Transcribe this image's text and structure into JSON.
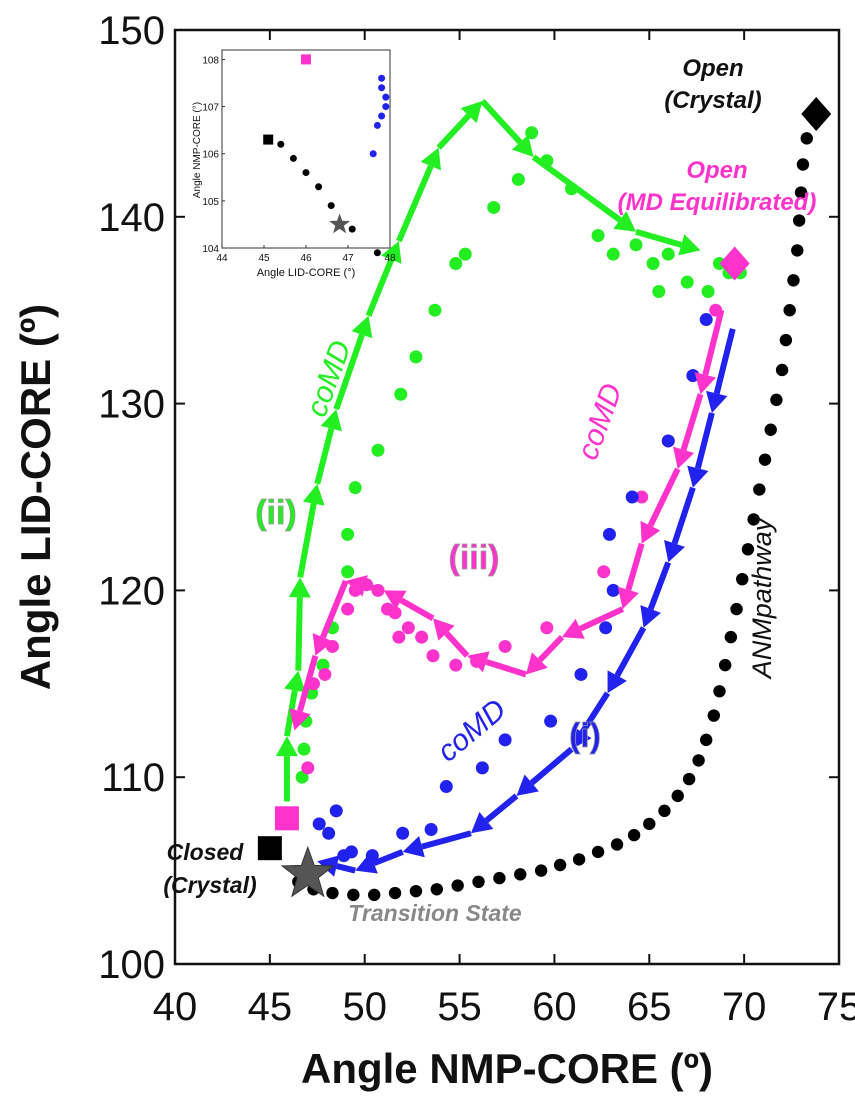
{
  "chart_data": {
    "type": "scatter",
    "xlabel": "Angle NMP-CORE (º)",
    "ylabel": "Angle LID-CORE (º)",
    "xlim": [
      40,
      75
    ],
    "ylim": [
      100,
      150
    ],
    "x_ticks": [
      "40",
      "45",
      "50",
      "55",
      "60",
      "65",
      "70",
      "75"
    ],
    "y_ticks": [
      "100",
      "110",
      "120",
      "130",
      "140",
      "150"
    ],
    "grid": false,
    "series": [
      {
        "name": "ANMpathway",
        "color": "#000000",
        "points": [
          [
            46.5,
            104.4
          ],
          [
            47.3,
            104.0
          ],
          [
            48.3,
            103.8
          ],
          [
            49.4,
            103.7
          ],
          [
            50.5,
            103.7
          ],
          [
            51.6,
            103.8
          ],
          [
            52.7,
            103.9
          ],
          [
            53.8,
            104.0
          ],
          [
            54.9,
            104.2
          ],
          [
            56.0,
            104.4
          ],
          [
            57.1,
            104.6
          ],
          [
            58.2,
            104.8
          ],
          [
            59.3,
            105.0
          ],
          [
            60.3,
            105.3
          ],
          [
            61.3,
            105.6
          ],
          [
            62.3,
            106.0
          ],
          [
            63.3,
            106.4
          ],
          [
            64.2,
            106.9
          ],
          [
            65.0,
            107.5
          ],
          [
            65.8,
            108.2
          ],
          [
            66.5,
            109.0
          ],
          [
            67.1,
            109.9
          ],
          [
            67.6,
            110.9
          ],
          [
            68.0,
            112.0
          ],
          [
            68.4,
            113.3
          ],
          [
            68.7,
            114.6
          ],
          [
            69.0,
            116.0
          ],
          [
            69.3,
            117.5
          ],
          [
            69.6,
            119.0
          ],
          [
            69.9,
            120.6
          ],
          [
            70.2,
            122.2
          ],
          [
            70.5,
            123.8
          ],
          [
            70.8,
            125.4
          ],
          [
            71.1,
            127.0
          ],
          [
            71.4,
            128.6
          ],
          [
            71.7,
            130.2
          ],
          [
            72.0,
            131.8
          ],
          [
            72.2,
            133.4
          ],
          [
            72.4,
            135.0
          ],
          [
            72.6,
            136.6
          ],
          [
            72.8,
            138.2
          ],
          [
            72.9,
            139.8
          ],
          [
            73.0,
            141.3
          ],
          [
            73.1,
            142.8
          ],
          [
            73.3,
            144.2
          ]
        ]
      },
      {
        "name": "",
        "color": "#22ee22",
        "points": [
          [
            46.7,
            110.0
          ],
          [
            46.8,
            111.5
          ],
          [
            46.9,
            113.0
          ],
          [
            47.2,
            114.5
          ],
          [
            47.8,
            116.0
          ],
          [
            48.3,
            118.0
          ],
          [
            49.1,
            121.0
          ],
          [
            49.1,
            123.0
          ],
          [
            49.5,
            125.5
          ],
          [
            50.7,
            127.5
          ],
          [
            51.9,
            130.5
          ],
          [
            52.7,
            132.5
          ],
          [
            53.7,
            135.0
          ],
          [
            54.8,
            137.5
          ],
          [
            55.3,
            138.0
          ],
          [
            56.8,
            140.5
          ],
          [
            58.1,
            142.0
          ],
          [
            58.8,
            144.5
          ],
          [
            59.6,
            143.0
          ],
          [
            60.9,
            141.5
          ],
          [
            62.3,
            139.0
          ],
          [
            63.1,
            138.0
          ],
          [
            64.3,
            138.5
          ],
          [
            65.2,
            137.5
          ],
          [
            65.5,
            136.0
          ],
          [
            66.0,
            138.0
          ],
          [
            67.0,
            136.5
          ],
          [
            68.1,
            136.0
          ],
          [
            68.7,
            137.5
          ],
          [
            69.2,
            137.0
          ],
          [
            69.8,
            137.0
          ]
        ]
      },
      {
        "name": "",
        "color": "#ff33cc",
        "points": [
          [
            47.0,
            110.5
          ],
          [
            47.3,
            115.0
          ],
          [
            47.9,
            115.5
          ],
          [
            48.3,
            117.0
          ],
          [
            49.1,
            119.0
          ],
          [
            49.5,
            120.0
          ],
          [
            50.1,
            120.3
          ],
          [
            50.7,
            120.0
          ],
          [
            51.2,
            119.0
          ],
          [
            51.6,
            118.8
          ],
          [
            51.8,
            117.5
          ],
          [
            52.3,
            118.0
          ],
          [
            53.0,
            117.5
          ],
          [
            53.6,
            116.5
          ],
          [
            54.8,
            116.0
          ],
          [
            55.9,
            116.2
          ],
          [
            57.4,
            117.0
          ],
          [
            59.6,
            118.0
          ],
          [
            62.6,
            121.0
          ],
          [
            64.6,
            125.0
          ],
          [
            66.0,
            128.0
          ],
          [
            67.3,
            131.5
          ],
          [
            68.5,
            135.0
          ]
        ]
      },
      {
        "name": "",
        "color": "#2222ee",
        "points": [
          [
            47.6,
            107.5
          ],
          [
            48.1,
            107.0
          ],
          [
            48.5,
            108.2
          ],
          [
            48.9,
            105.8
          ],
          [
            49.3,
            106.0
          ],
          [
            50.4,
            105.8
          ],
          [
            52.0,
            107.0
          ],
          [
            53.5,
            107.2
          ],
          [
            54.3,
            109.5
          ],
          [
            56.2,
            110.5
          ],
          [
            57.4,
            112.0
          ],
          [
            59.8,
            113.0
          ],
          [
            61.4,
            115.5
          ],
          [
            62.7,
            118.0
          ],
          [
            63.1,
            120.0
          ],
          [
            62.9,
            123.0
          ],
          [
            64.1,
            125.0
          ],
          [
            66.0,
            128.0
          ],
          [
            67.3,
            131.5
          ],
          [
            68.0,
            134.5
          ]
        ]
      }
    ],
    "arrows": [
      {
        "path": "green",
        "color": "#22ee22",
        "points": [
          [
            45.9,
            108.7
          ],
          [
            45.9,
            112.2
          ],
          [
            46.5,
            115.7
          ],
          [
            46.6,
            120.7
          ],
          [
            47.5,
            125.7
          ],
          [
            48.5,
            129.7
          ],
          [
            50.2,
            134.7
          ],
          [
            51.8,
            138.7
          ],
          [
            53.9,
            143.7
          ],
          [
            56.2,
            146.2
          ],
          [
            58.9,
            143.2
          ],
          [
            64.3,
            139.2
          ],
          [
            67.7,
            138.2
          ]
        ]
      },
      {
        "path": "magenta",
        "color": "#ff33cc",
        "points": [
          [
            68.8,
            135.0
          ],
          [
            67.7,
            130.5
          ],
          [
            66.5,
            126.5
          ],
          [
            64.6,
            122.5
          ],
          [
            63.6,
            119.0
          ],
          [
            60.4,
            117.5
          ],
          [
            58.5,
            115.5
          ],
          [
            55.4,
            116.5
          ],
          [
            53.6,
            118.5
          ],
          [
            51.0,
            120.0
          ],
          [
            49.0,
            120.5
          ],
          [
            47.4,
            116.5
          ],
          [
            46.3,
            112.5
          ]
        ]
      },
      {
        "path": "blue",
        "color": "#2222ee",
        "points": [
          [
            69.4,
            134.0
          ],
          [
            68.3,
            129.5
          ],
          [
            67.3,
            125.5
          ],
          [
            66.0,
            121.5
          ],
          [
            64.7,
            118.0
          ],
          [
            62.8,
            114.5
          ],
          [
            60.9,
            111.5
          ],
          [
            58.0,
            109.0
          ],
          [
            55.6,
            107.0
          ],
          [
            52.0,
            106.0
          ],
          [
            49.5,
            105.0
          ],
          [
            47.5,
            105.5
          ]
        ]
      }
    ],
    "markers": [
      {
        "label_key": "closed",
        "shape": "square",
        "color": "#000000",
        "x": 45.0,
        "y": 106.2
      },
      {
        "label_key": "md_square",
        "shape": "square",
        "color": "#ff33cc",
        "x": 45.9,
        "y": 107.8
      },
      {
        "label_key": "transition",
        "shape": "star",
        "color": "#555555",
        "x": 47.0,
        "y": 104.8
      },
      {
        "label_key": "open_crystal",
        "shape": "diamond",
        "color": "#000000",
        "x": 73.8,
        "y": 145.5
      },
      {
        "label_key": "open_md",
        "shape": "diamond",
        "color": "#ff33cc",
        "x": 69.5,
        "y": 137.5
      }
    ],
    "inset": {
      "xlabel": "Angle LID-CORE (°)",
      "ylabel": "Angle NMP-CORE (°)",
      "xlim": [
        44,
        48
      ],
      "ylim": [
        104,
        108.2
      ],
      "x_ticks": [
        "44",
        "45",
        "46",
        "47",
        "48"
      ],
      "y_ticks": [
        "104",
        "105",
        "106",
        "107",
        "108"
      ],
      "black_points": [
        [
          45.4,
          106.2
        ],
        [
          45.7,
          105.9
        ],
        [
          46.0,
          105.6
        ],
        [
          46.3,
          105.3
        ],
        [
          46.6,
          104.9
        ],
        [
          47.1,
          104.4
        ],
        [
          47.7,
          103.9
        ]
      ],
      "black_square": [
        45.1,
        106.3
      ],
      "magenta_square": [
        46.0,
        108.0
      ],
      "star": [
        46.8,
        104.5
      ],
      "blue_points": [
        [
          47.6,
          106.0
        ],
        [
          47.7,
          106.6
        ],
        [
          47.8,
          106.8
        ],
        [
          47.9,
          107.2
        ],
        [
          47.8,
          107.4
        ],
        [
          47.8,
          107.6
        ],
        [
          47.9,
          107.0
        ]
      ]
    },
    "annotations": {
      "open_crystal": [
        "Open",
        "(Crystal)"
      ],
      "open_md": [
        "Open",
        "(MD Equilibrated)"
      ],
      "closed": [
        "Closed",
        "(Crystal)"
      ],
      "transition": "Transition State",
      "anm": "ANMpathway",
      "comd": "coMD",
      "ii": "(ii)",
      "iii": "(iii)",
      "i": "(i)"
    }
  }
}
